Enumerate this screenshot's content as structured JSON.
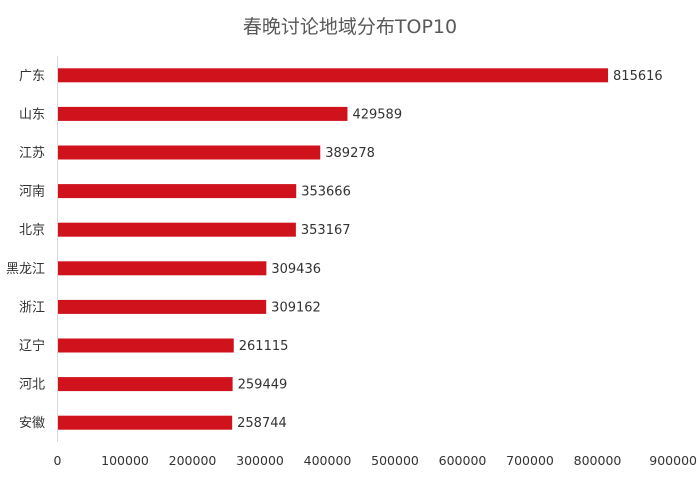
{
  "chart_data": {
    "type": "bar",
    "orientation": "horizontal",
    "title": "春晚讨论地域分布TOP10",
    "categories": [
      "广东",
      "山东",
      "江苏",
      "河南",
      "北京",
      "黑龙江",
      "浙江",
      "辽宁",
      "河北",
      "安徽"
    ],
    "values": [
      815616,
      429589,
      389278,
      353666,
      353167,
      309436,
      309162,
      261115,
      259449,
      258744
    ],
    "value_labels": [
      "815616",
      "429589",
      "389278",
      "353666",
      "353167",
      "309436",
      "309162",
      "261115",
      "259449",
      "258744"
    ],
    "xlim": [
      0,
      900000
    ],
    "xticks": [
      0,
      100000,
      200000,
      300000,
      400000,
      500000,
      600000,
      700000,
      800000,
      900000
    ],
    "xtick_labels": [
      "0",
      "100000",
      "200000",
      "300000",
      "400000",
      "500000",
      "600000",
      "700000",
      "800000",
      "900000"
    ],
    "bar_color": "#D0121D",
    "grid": false,
    "legend": "none"
  }
}
